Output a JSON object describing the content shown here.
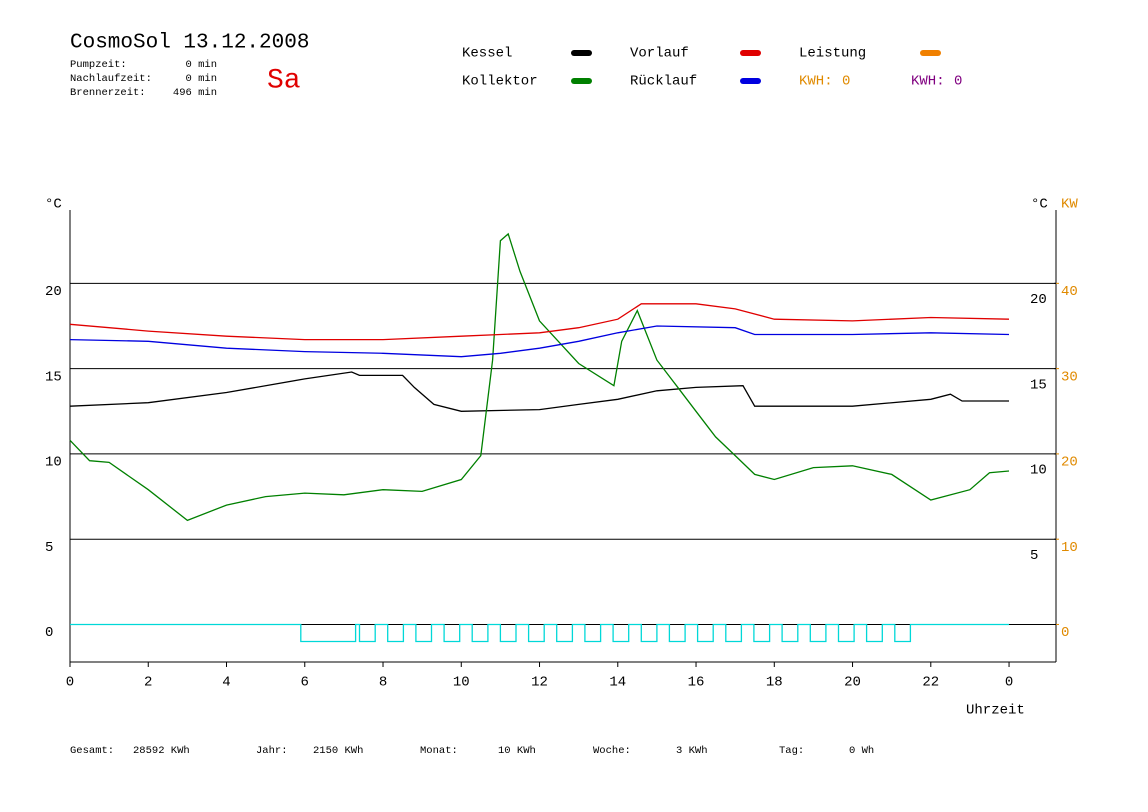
{
  "header": {
    "title": "CosmoSol 13.12.2008",
    "day": "Sa",
    "stats": [
      {
        "label": "Pumpzeit:",
        "value": "0 min"
      },
      {
        "label": "Nachlaufzeit:",
        "value": "0 min"
      },
      {
        "label": "Brennerzeit:",
        "value": "496 min"
      }
    ],
    "kwh": [
      {
        "label": "KWH:",
        "value": 0,
        "color": "#e08a00"
      },
      {
        "label": "KWH:",
        "value": 0,
        "color": "#800080"
      }
    ]
  },
  "chart_data": {
    "type": "line",
    "xlim": [
      0,
      25.2
    ],
    "xticks": [
      0,
      2,
      4,
      6,
      8,
      10,
      12,
      14,
      16,
      18,
      20,
      22,
      {
        "value": 24,
        "label": "0"
      }
    ],
    "x_label": "Uhrzeit",
    "ylim": [
      -2.2,
      24.3
    ],
    "yticks": [
      0,
      5,
      10,
      15,
      20
    ],
    "y_label": "°C",
    "yticks_right": [
      5,
      10,
      15,
      20
    ],
    "y_label_right": "°C",
    "y2lim": [
      -4.4,
      48.6
    ],
    "y2ticks": [
      0,
      10,
      20,
      30,
      40
    ],
    "y2_label": "KW",
    "y2_color": "#e08a00",
    "grid": true,
    "series": [
      {
        "name": "Kessel",
        "color": "#000000",
        "x": [
          0,
          2,
          4,
          6,
          7.2,
          7.4,
          8.5,
          8.8,
          9.3,
          10,
          12,
          13,
          14,
          15,
          16,
          17.2,
          17.5,
          20,
          22,
          22.5,
          22.8,
          24
        ],
        "values": [
          12.8,
          13.0,
          13.6,
          14.4,
          14.8,
          14.6,
          14.6,
          13.9,
          12.9,
          12.5,
          12.6,
          12.9,
          13.2,
          13.7,
          13.9,
          14.0,
          12.8,
          12.8,
          13.2,
          13.5,
          13.1,
          13.1
        ]
      },
      {
        "name": "Kollektor",
        "color": "#008000",
        "x": [
          0,
          0.5,
          1,
          2,
          3,
          4,
          5,
          6,
          7,
          8,
          9,
          10,
          10.5,
          10.8,
          11.0,
          11.2,
          11.5,
          12,
          13,
          13.9,
          14.1,
          14.5,
          15,
          15.5,
          16,
          16.5,
          17,
          17.5,
          18,
          19,
          20,
          21,
          22,
          23,
          23.5,
          24
        ],
        "values": [
          10.8,
          9.6,
          9.5,
          7.9,
          6.1,
          7.0,
          7.5,
          7.7,
          7.6,
          7.9,
          7.8,
          8.5,
          9.9,
          15.5,
          22.5,
          22.9,
          20.7,
          17.8,
          15.3,
          14.0,
          16.6,
          18.4,
          15.5,
          14.0,
          12.5,
          11.0,
          9.9,
          8.8,
          8.5,
          9.2,
          9.3,
          8.8,
          7.3,
          7.9,
          8.9,
          9.0
        ]
      },
      {
        "name": "Vorlauf",
        "color": "#e00000",
        "x": [
          0,
          2,
          4,
          6,
          8,
          10,
          11,
          12,
          13,
          14,
          14.6,
          16,
          17,
          18,
          20,
          22,
          24
        ],
        "values": [
          17.6,
          17.2,
          16.9,
          16.7,
          16.7,
          16.9,
          17.0,
          17.1,
          17.4,
          17.9,
          18.8,
          18.8,
          18.5,
          17.9,
          17.8,
          18.0,
          17.9
        ]
      },
      {
        "name": "Rücklauf",
        "color": "#0000e0",
        "x": [
          0,
          2,
          4,
          6,
          8,
          10,
          11,
          12,
          13,
          14,
          15,
          17,
          17.5,
          20,
          22,
          24
        ],
        "values": [
          16.7,
          16.6,
          16.2,
          16.0,
          15.9,
          15.7,
          15.9,
          16.2,
          16.6,
          17.1,
          17.5,
          17.4,
          17.0,
          17.0,
          17.1,
          17.0
        ]
      },
      {
        "name": "Leistung",
        "color": "#f08000",
        "axis": "y2",
        "x": [],
        "values": []
      },
      {
        "color": "#00d8d8",
        "x": [
          0,
          5.9,
          5.9,
          7.3,
          7.3,
          7.4,
          7.4,
          7.8,
          7.8,
          8.12,
          8.12,
          8.52,
          8.52,
          8.84,
          8.84,
          9.24,
          9.24,
          9.56,
          9.56,
          9.96,
          9.96,
          10.28,
          10.28,
          10.68,
          10.68,
          11.0,
          11.0,
          11.4,
          11.4,
          11.72,
          11.72,
          12.12,
          12.12,
          12.44,
          12.44,
          12.84,
          12.84,
          13.16,
          13.16,
          13.56,
          13.56,
          13.88,
          13.88,
          14.28,
          14.28,
          14.6,
          14.6,
          15.0,
          15.0,
          15.32,
          15.32,
          15.72,
          15.72,
          16.04,
          16.04,
          16.44,
          16.44,
          16.76,
          16.76,
          17.16,
          17.16,
          17.48,
          17.48,
          17.88,
          17.88,
          18.2,
          18.2,
          18.6,
          18.6,
          18.92,
          18.92,
          19.32,
          19.32,
          19.64,
          19.64,
          20.04,
          20.04,
          20.36,
          20.36,
          20.76,
          20.76,
          21.08,
          21.08,
          21.48,
          21.48,
          24
        ],
        "values": [
          0,
          0,
          -1,
          -1,
          0,
          0,
          -1,
          -1,
          0,
          0,
          -1,
          -1,
          0,
          0,
          -1,
          -1,
          0,
          0,
          -1,
          -1,
          0,
          0,
          -1,
          -1,
          0,
          0,
          -1,
          -1,
          0,
          0,
          -1,
          -1,
          0,
          0,
          -1,
          -1,
          0,
          0,
          -1,
          -1,
          0,
          0,
          -1,
          -1,
          0,
          0,
          -1,
          -1,
          0,
          0,
          -1,
          -1,
          0,
          0,
          -1,
          -1,
          0,
          0,
          -1,
          -1,
          0,
          0,
          -1,
          -1,
          0,
          0,
          -1,
          -1,
          0,
          0,
          -1,
          -1,
          0,
          0,
          -1,
          -1,
          0,
          0,
          -1,
          -1,
          0,
          0,
          -1,
          -1,
          0,
          0
        ]
      }
    ]
  },
  "footer": [
    {
      "label": "Gesamt:",
      "value": "28592 KWh"
    },
    {
      "label": "Jahr:",
      "value": "2150 KWh"
    },
    {
      "label": "Monat:",
      "value": "10 KWh"
    },
    {
      "label": "Woche:",
      "value": "3 KWh"
    },
    {
      "label": "Tag:",
      "value": "0 Wh"
    }
  ]
}
